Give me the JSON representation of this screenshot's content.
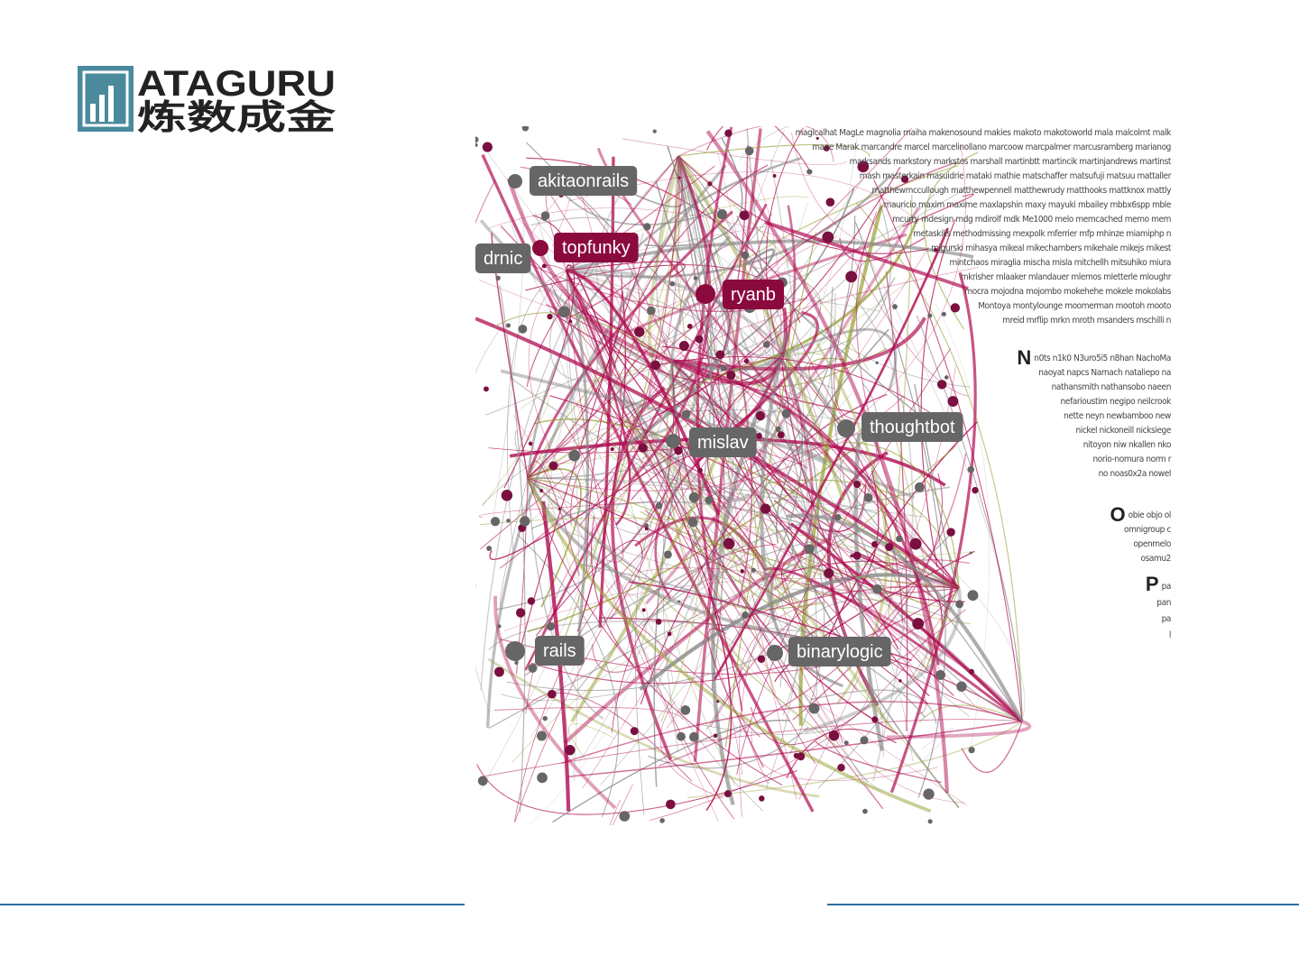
{
  "header": {
    "logo_top": "ATAGURU",
    "logo_bottom": "炼数成金"
  },
  "graph": {
    "labels": [
      {
        "text": "akitaonrails",
        "kind": "grey"
      },
      {
        "text": "topfunky",
        "kind": "crimson"
      },
      {
        "text": "drnic",
        "kind": "grey"
      },
      {
        "text": "ryanb",
        "kind": "crimson"
      },
      {
        "text": "mislav",
        "kind": "grey"
      },
      {
        "text": "thoughtbot",
        "kind": "grey"
      },
      {
        "text": "rails",
        "kind": "grey"
      },
      {
        "text": "binarylogic",
        "kind": "grey"
      }
    ]
  },
  "names": {
    "m_lines": [
      "magicalhat MagLe magnolia maiha makenosound makies makoto makotoworld mala malcolmt malk",
      "maoe Marak marcandre marcel marcelinollano marcoow marcpalmer marcusramberg marianog",
      "marksands markstory markstos marshall martinbtt martincik martinjandrews martinst",
      "mash masterkain masuidrie mataki mathie matschaffer matsufuji matsuu mattaller",
      "matthewmccullough matthewpennell matthewrudy matthooks mattknox mattly",
      "mauricio maxim maxime maxlapshin maxy mayuki mbailey mbbx6spp mble",
      "mcurry mdesign mdg mdirolf mdk Me1000 melo memcached memo mem",
      "metaskills methodmissing mexpolk mferrier mfp mhinze miamiphp n",
      "migurski mihasya mikeal mikechambers mikehale mikejs mikest",
      "mintchaos miraglia mischa misla mitchellh mitsuhiko miura",
      "mkrisher mlaaker mlandauer mlemos mletterle mloughr",
      "mocra mojodna mojombo mokehehe mokele mokolabs",
      "Montoya montylounge moomerman mootoh mooto",
      "mreid mrflip mrkn mroth msanders mschilli n"
    ],
    "groups": [
      {
        "letter": "N",
        "lines": [
          "n0ts n1k0 N3uro5i5 n8han NachoMa",
          "naoyat napcs Narnach nataliepo na",
          "nathansmith nathansobo naeen",
          "nefarioustim negipo neilcrook",
          "nette neyn newbamboo new",
          "nickel nickoneill nicksiege",
          "nitoyon niw nkallen nko",
          "norio-nomura norm r",
          "no noas0x2a nowel"
        ]
      },
      {
        "letter": "O",
        "lines": [
          "obie objo ol",
          "omnigroup c",
          "openmelo",
          "osamu2"
        ]
      },
      {
        "letter": "P",
        "lines": [
          "pa",
          "pan",
          "pa",
          "l"
        ]
      }
    ]
  }
}
